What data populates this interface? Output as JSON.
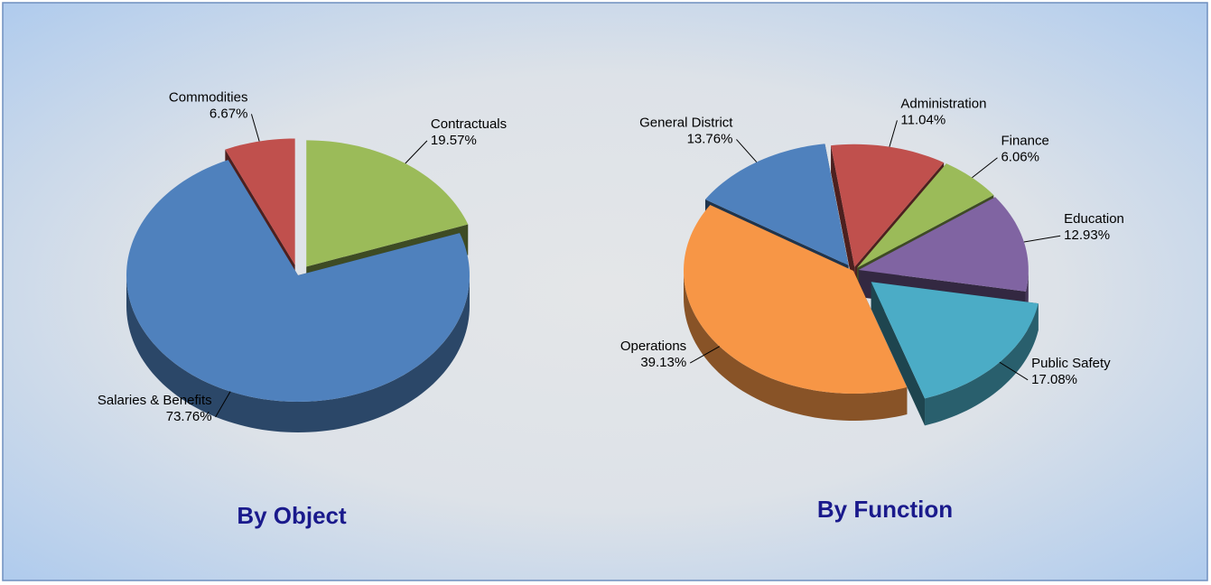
{
  "chart_data": [
    {
      "type": "pie",
      "title": "By Object",
      "categories": [
        "Contractuals",
        "Salaries & Benefits",
        "Commodities"
      ],
      "values": [
        19.57,
        73.76,
        6.67
      ],
      "value_labels": [
        "19.57%",
        "73.76%",
        "6.67%"
      ],
      "colors": [
        "#9bbb59",
        "#4f81bd",
        "#c0504d"
      ]
    },
    {
      "type": "pie",
      "title": "By Function",
      "categories": [
        "Administration",
        "Finance",
        "Education",
        "Public Safety",
        "Operations",
        "General District"
      ],
      "values": [
        11.04,
        6.06,
        12.93,
        17.08,
        39.13,
        13.76
      ],
      "value_labels": [
        "11.04%",
        "6.06%",
        "12.93%",
        "17.08%",
        "39.13%",
        "13.76%"
      ],
      "colors": [
        "#c0504d",
        "#9bbb59",
        "#8064a2",
        "#4bacc6",
        "#f79646",
        "#4f81bd"
      ]
    }
  ]
}
